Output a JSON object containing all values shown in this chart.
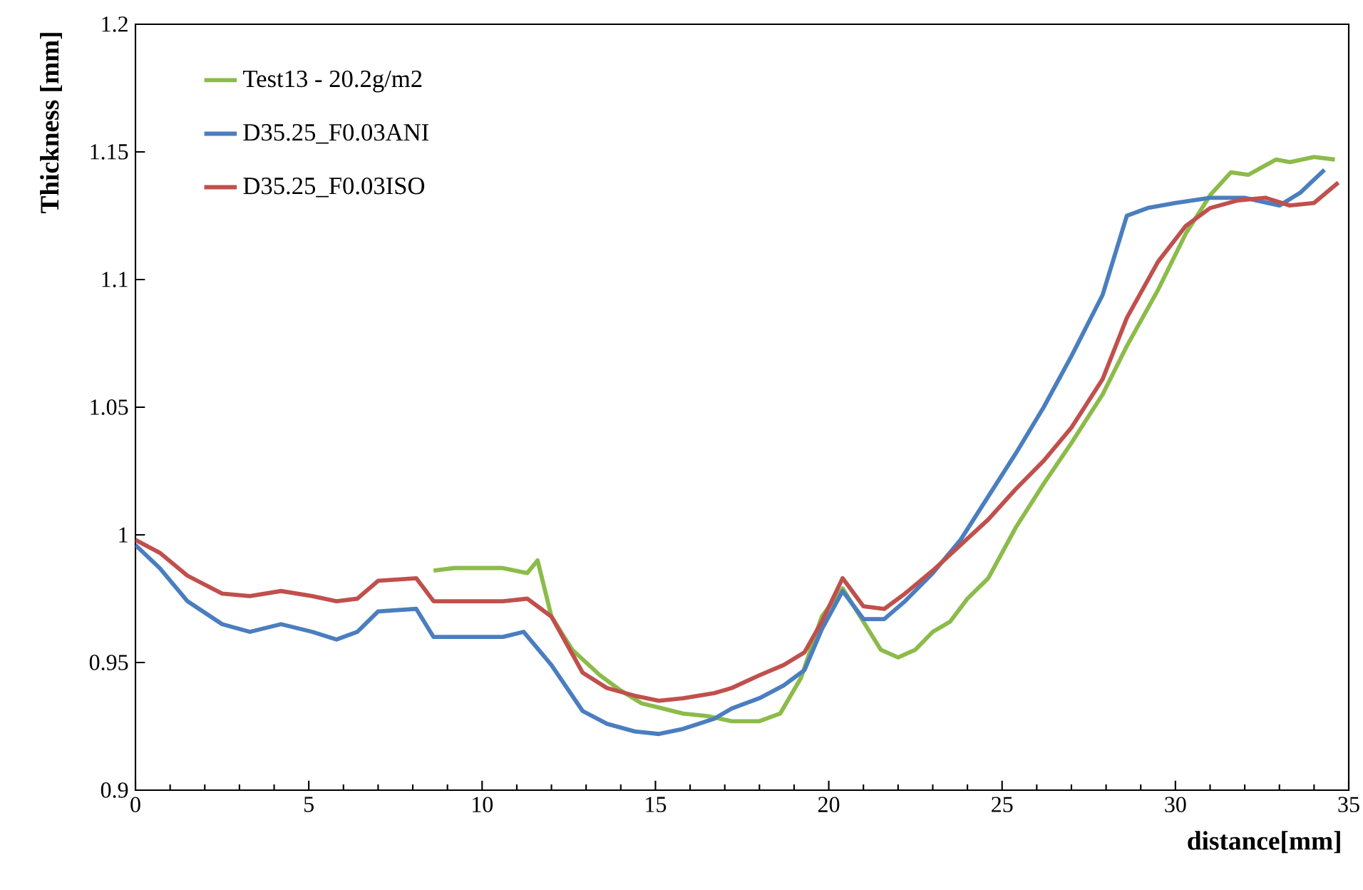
{
  "chart_data": {
    "type": "line",
    "xlabel": "distance[mm]",
    "ylabel": "Thickness [mm]",
    "xlim": [
      0,
      35
    ],
    "xticks": [
      0,
      5,
      10,
      15,
      20,
      25,
      30,
      35
    ],
    "ylim": [
      0.9,
      1.2
    ],
    "yticks": [
      0.9,
      0.95,
      1,
      1.05,
      1.1,
      1.15,
      1.2
    ],
    "legend": "top left",
    "grid": false,
    "marker": "none",
    "line_style": "solid",
    "series": [
      {
        "name": "Test13 - 20.2g/m2",
        "color": "#8cbb4a",
        "x": [
          8.6,
          9.2,
          9.9,
          10.6,
          11.3,
          11.6,
          12.0,
          12.6,
          13.4,
          14.0,
          14.6,
          15.2,
          15.8,
          16.5,
          17.2,
          18.0,
          18.6,
          19.2,
          19.8,
          20.4,
          21.0,
          21.5,
          22.0,
          22.5,
          23.0,
          23.5,
          24.0,
          24.6,
          25.4,
          26.2,
          27.0,
          27.9,
          28.6,
          29.5,
          30.3,
          31.0,
          31.6,
          32.1,
          32.9,
          33.3,
          34.0,
          34.6
        ],
        "values": [
          0.986,
          0.987,
          0.987,
          0.987,
          0.985,
          0.99,
          0.968,
          0.955,
          0.945,
          0.939,
          0.934,
          0.932,
          0.93,
          0.929,
          0.927,
          0.927,
          0.93,
          0.944,
          0.968,
          0.979,
          0.966,
          0.955,
          0.952,
          0.955,
          0.962,
          0.966,
          0.975,
          0.983,
          1.003,
          1.02,
          1.036,
          1.055,
          1.074,
          1.096,
          1.118,
          1.133,
          1.142,
          1.141,
          1.147,
          1.146,
          1.148,
          1.147
        ]
      },
      {
        "name": "D35.25_F0.03ANI",
        "color": "#4a7ebf",
        "x": [
          0,
          0.7,
          1.5,
          2.5,
          3.3,
          4.2,
          5.1,
          5.8,
          6.4,
          7.0,
          8.1,
          8.6,
          9.9,
          10.6,
          11.2,
          12.0,
          12.9,
          13.6,
          14.4,
          15.1,
          15.8,
          16.7,
          17.2,
          18.0,
          18.7,
          19.3,
          19.8,
          20.4,
          21.0,
          21.6,
          22.2,
          23.0,
          23.8,
          24.6,
          25.4,
          26.2,
          27.0,
          27.9,
          28.6,
          29.2,
          30.0,
          31.0,
          32.0,
          33.0,
          33.6,
          34.3
        ],
        "values": [
          0.996,
          0.987,
          0.974,
          0.965,
          0.962,
          0.965,
          0.962,
          0.959,
          0.962,
          0.97,
          0.971,
          0.96,
          0.96,
          0.96,
          0.962,
          0.949,
          0.931,
          0.926,
          0.923,
          0.922,
          0.924,
          0.928,
          0.932,
          0.936,
          0.941,
          0.947,
          0.963,
          0.978,
          0.967,
          0.967,
          0.974,
          0.985,
          0.998,
          1.015,
          1.032,
          1.05,
          1.07,
          1.094,
          1.125,
          1.128,
          1.13,
          1.132,
          1.132,
          1.129,
          1.134,
          1.143
        ]
      },
      {
        "name": "D35.25_F0.03ISO",
        "color": "#c0504d",
        "x": [
          0,
          0.7,
          1.5,
          2.5,
          3.3,
          4.2,
          5.1,
          5.8,
          6.4,
          7.0,
          8.1,
          8.6,
          9.9,
          10.6,
          11.3,
          12.0,
          12.9,
          13.6,
          14.4,
          15.1,
          15.8,
          16.7,
          17.2,
          18.0,
          18.7,
          19.3,
          19.8,
          20.4,
          21.0,
          21.6,
          22.2,
          23.0,
          23.8,
          24.6,
          25.4,
          26.2,
          27.0,
          27.9,
          28.6,
          29.5,
          30.3,
          31.0,
          31.8,
          32.6,
          33.3,
          34.0,
          34.7
        ],
        "values": [
          0.998,
          0.993,
          0.984,
          0.977,
          0.976,
          0.978,
          0.976,
          0.974,
          0.975,
          0.982,
          0.983,
          0.974,
          0.974,
          0.974,
          0.975,
          0.968,
          0.946,
          0.94,
          0.937,
          0.935,
          0.936,
          0.938,
          0.94,
          0.945,
          0.949,
          0.954,
          0.966,
          0.983,
          0.972,
          0.971,
          0.977,
          0.986,
          0.996,
          1.006,
          1.018,
          1.029,
          1.042,
          1.061,
          1.085,
          1.107,
          1.121,
          1.128,
          1.131,
          1.132,
          1.129,
          1.13,
          1.138
        ]
      }
    ]
  }
}
